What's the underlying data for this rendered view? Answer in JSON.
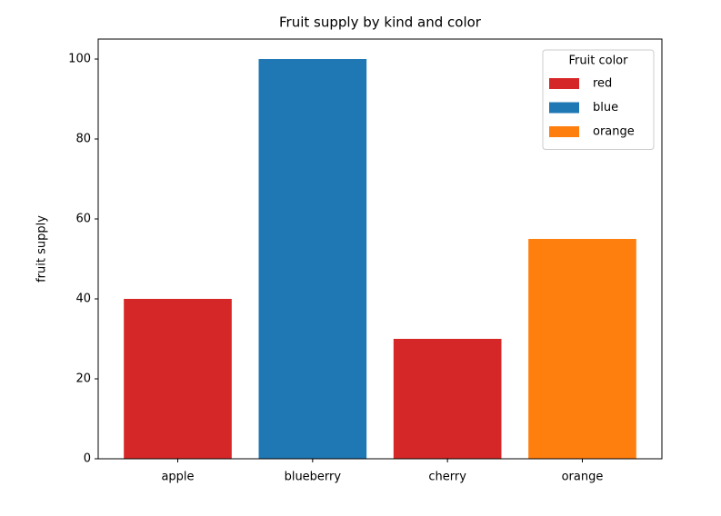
{
  "chart_data": {
    "type": "bar",
    "title": "Fruit supply by kind and color",
    "ylabel": "fruit supply",
    "categories": [
      "apple",
      "blueberry",
      "cherry",
      "orange"
    ],
    "values": [
      40,
      100,
      30,
      55
    ],
    "colors": [
      "#d62728",
      "#1f77b4",
      "#d62728",
      "#ff7f0e"
    ],
    "ylim": [
      0,
      105
    ],
    "yticks": [
      0,
      20,
      40,
      60,
      80,
      100
    ],
    "legend": {
      "title": "Fruit color",
      "position": "upper right",
      "entries": [
        {
          "label": "red",
          "color": "#d62728"
        },
        {
          "label": "blue",
          "color": "#1f77b4"
        },
        {
          "label": "orange",
          "color": "#ff7f0e"
        }
      ]
    }
  }
}
